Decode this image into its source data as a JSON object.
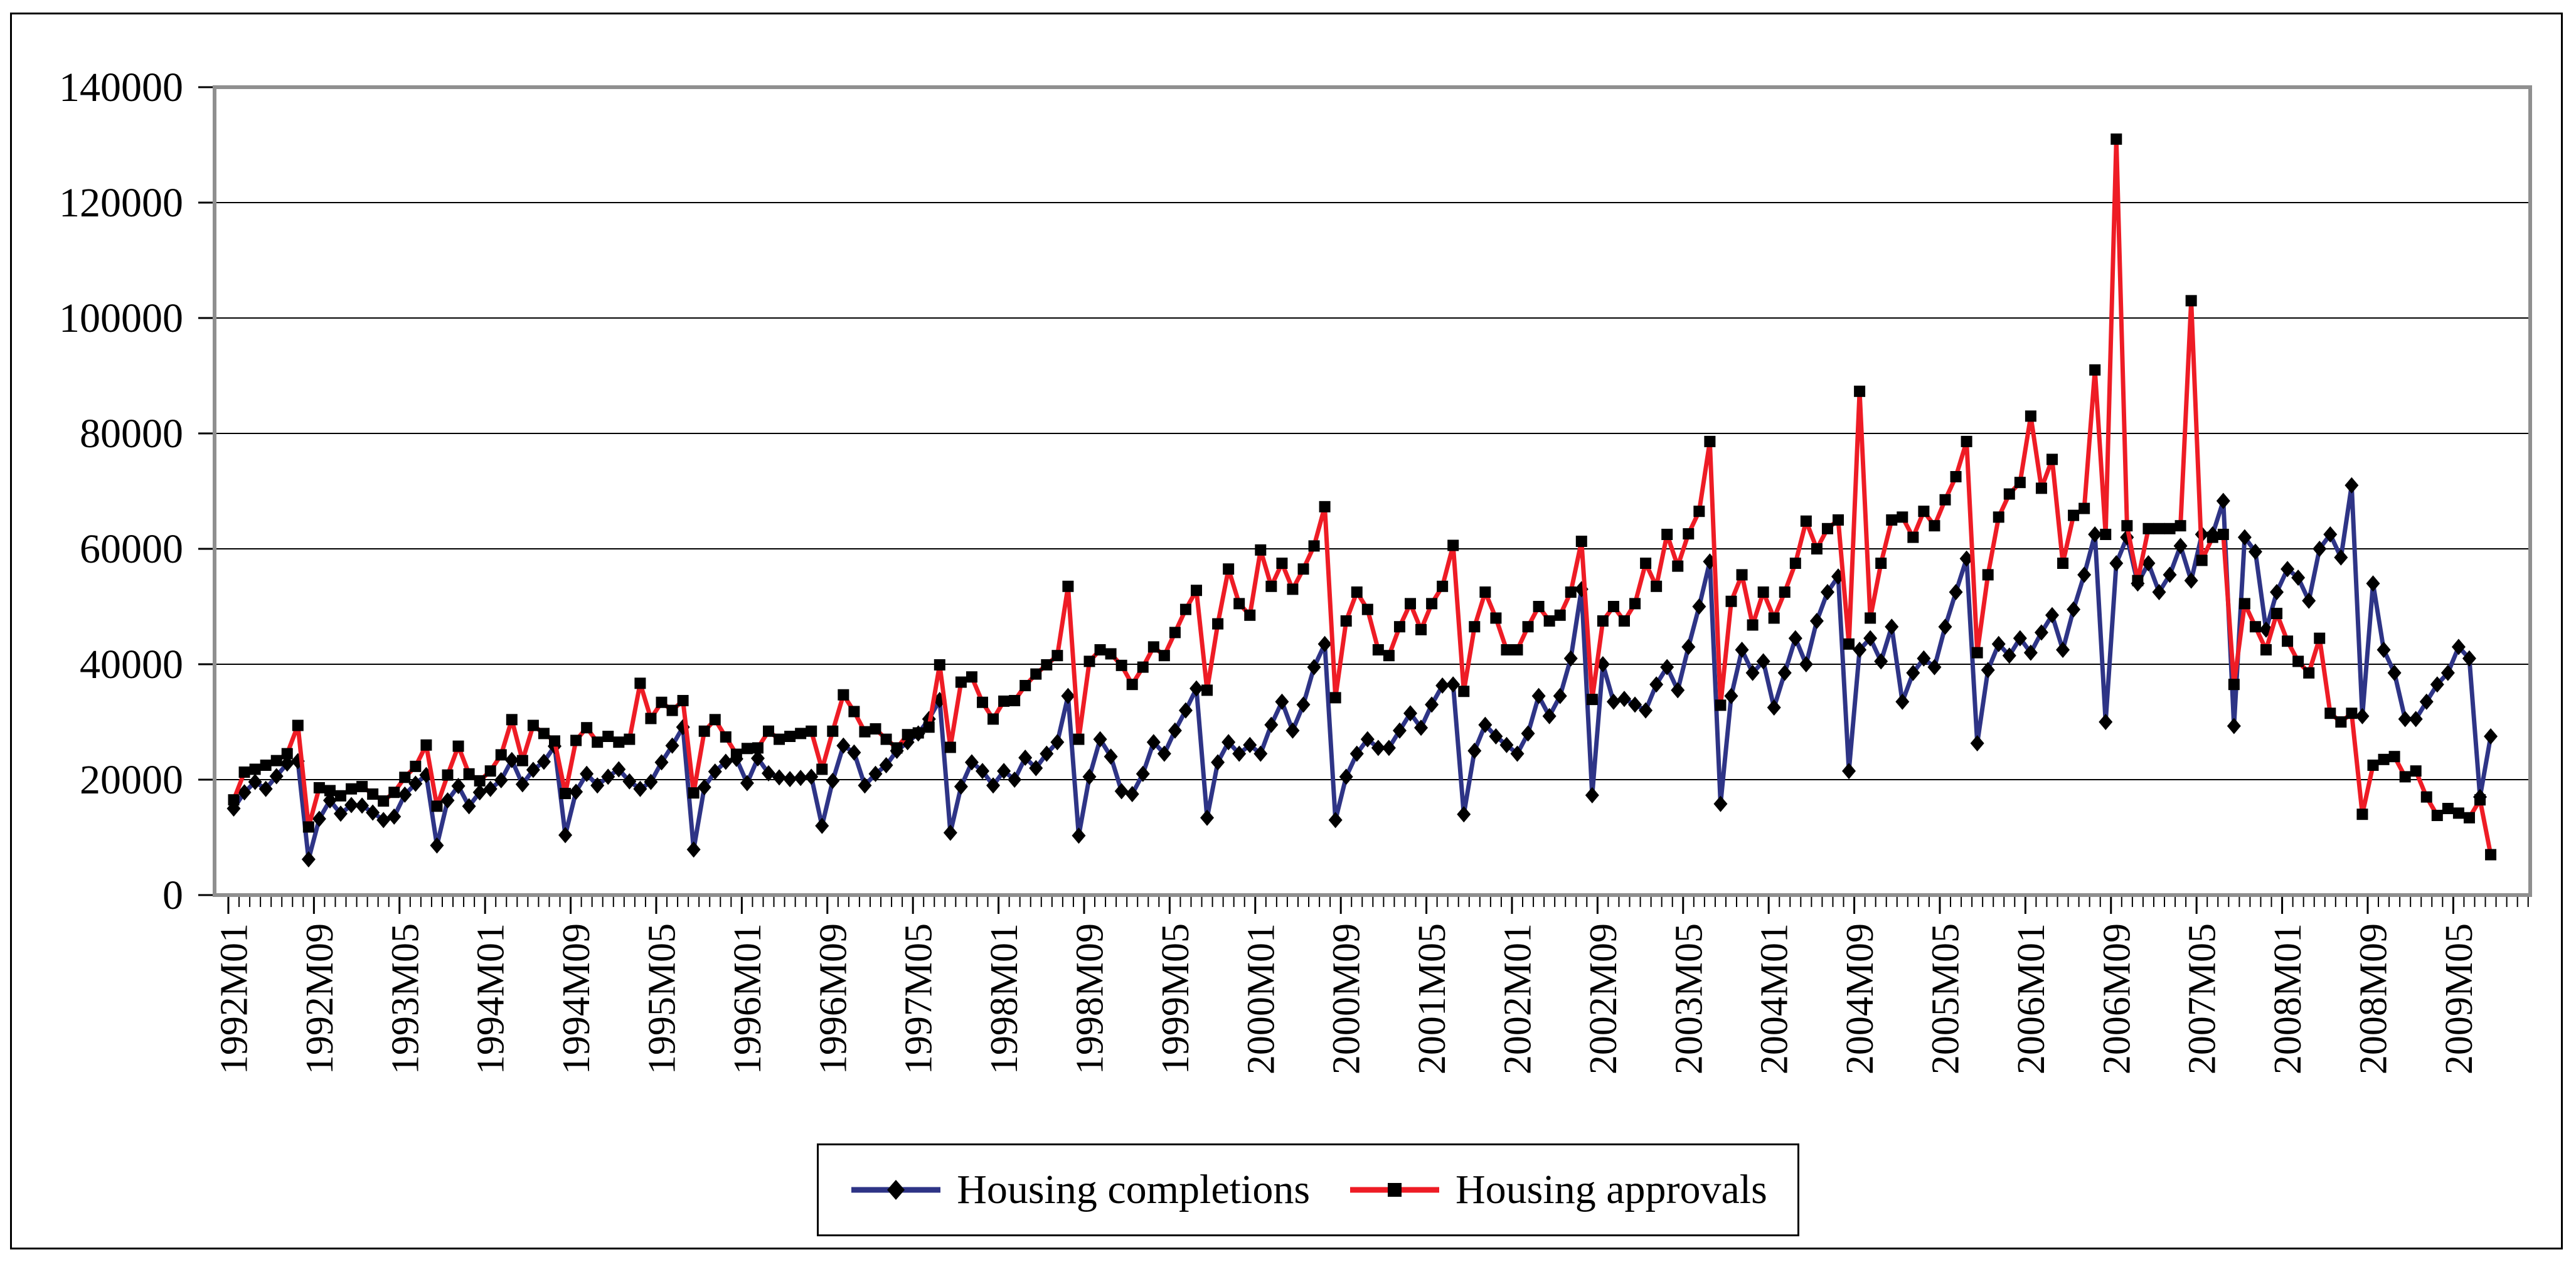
{
  "chart_data": {
    "type": "line",
    "title": "",
    "xlabel": "",
    "ylabel": "",
    "grid": "horizontal",
    "legend_position": "bottom-center",
    "x_axis": {
      "start_month": "1992M01",
      "end_month": "2009M08",
      "months_per_tick_label": 8,
      "tick_labels": [
        "1992M01",
        "1992M09",
        "1993M05",
        "1994M01",
        "1994M09",
        "1995M05",
        "1996M01",
        "1996M09",
        "1997M05",
        "1998M01",
        "1998M09",
        "1999M05",
        "2000M01",
        "2000M09",
        "2001M05",
        "2002M01",
        "2002M09",
        "2003M05",
        "2004M01",
        "2004M09",
        "2005M05",
        "2006M01",
        "2006M09",
        "2007M05",
        "2008M01",
        "2008M09",
        "2009M05"
      ]
    },
    "y_axis": {
      "min": 0,
      "max": 140000,
      "step": 20000,
      "tick_labels": [
        "0",
        "20000",
        "40000",
        "60000",
        "80000",
        "100000",
        "120000",
        "140000"
      ]
    },
    "colors": {
      "completions_line": "#2e3486",
      "approvals_line": "#ee1c25",
      "marker": "#000000",
      "plot_border": "#8f8f8f",
      "gridline": "#000000",
      "outer_border": "#000000"
    },
    "series": [
      {
        "name": "Housing completions",
        "color": "#2e3486",
        "marker": "diamond",
        "marker_color": "#000000",
        "values": [
          15000,
          17800,
          19600,
          18400,
          20600,
          22800,
          23200,
          6200,
          13200,
          16400,
          14100,
          15600,
          15500,
          14300,
          13000,
          13600,
          17400,
          19300,
          20800,
          8600,
          16400,
          18900,
          15400,
          17800,
          18400,
          19900,
          23400,
          19200,
          21700,
          23100,
          25800,
          10400,
          17900,
          21000,
          19000,
          20500,
          21800,
          19700,
          18400,
          19600,
          23000,
          25900,
          29100,
          7900,
          18700,
          21400,
          23100,
          23600,
          19400,
          23700,
          21100,
          20400,
          20100,
          20300,
          20500,
          12000,
          19800,
          25900,
          24700,
          19000,
          21000,
          22500,
          25000,
          26500,
          28000,
          30500,
          33800,
          10800,
          18800,
          23000,
          21500,
          19000,
          21500,
          20000,
          23800,
          22000,
          24500,
          26500,
          34500,
          10300,
          20500,
          27000,
          24000,
          18000,
          17500,
          21000,
          26500,
          24500,
          28500,
          32000,
          35800,
          13400,
          23000,
          26500,
          24500,
          26000,
          24500,
          29500,
          33500,
          28500,
          33000,
          39500,
          43500,
          13000,
          20500,
          24500,
          27000,
          25500,
          25500,
          28500,
          31500,
          29000,
          33000,
          36300,
          36500,
          14000,
          25000,
          29500,
          27500,
          26000,
          24500,
          28000,
          34500,
          31000,
          34500,
          41000,
          53000,
          17300,
          40000,
          33500,
          34000,
          33000,
          32000,
          36500,
          39500,
          35500,
          43000,
          50000,
          57800,
          15800,
          34500,
          42500,
          38500,
          40500,
          32500,
          38500,
          44500,
          40000,
          47500,
          52500,
          55200,
          21500,
          42500,
          44500,
          40500,
          46500,
          33500,
          38500,
          41000,
          39500,
          46500,
          52500,
          58300,
          26300,
          39000,
          43500,
          41500,
          44500,
          42000,
          45500,
          48500,
          42500,
          49500,
          55500,
          62500,
          30000,
          57500,
          62000,
          54000,
          57500,
          52500,
          55500,
          60500,
          54500,
          62500,
          62500,
          68300,
          29300,
          62000,
          59500,
          46000,
          52500,
          56500,
          55000,
          51000,
          60000,
          62500,
          58500,
          71000,
          31000,
          54000,
          42500,
          38500,
          30500,
          30500,
          33500,
          36500,
          38500,
          43000,
          41000,
          17000,
          27500
        ]
      },
      {
        "name": "Housing approvals",
        "color": "#ee1c25",
        "marker": "square",
        "marker_color": "#000000",
        "values": [
          16500,
          21300,
          21800,
          22500,
          23300,
          24500,
          29400,
          11800,
          18600,
          18100,
          17200,
          18400,
          18800,
          17500,
          16300,
          17800,
          20400,
          22300,
          26000,
          15400,
          20800,
          25800,
          21000,
          19800,
          21500,
          24300,
          30400,
          23300,
          29400,
          28000,
          26700,
          17600,
          26800,
          29000,
          26500,
          27500,
          26500,
          27000,
          36700,
          30600,
          33400,
          32000,
          33700,
          17700,
          28400,
          30400,
          27400,
          24400,
          25400,
          25500,
          28400,
          27000,
          27500,
          28000,
          28400,
          21800,
          28400,
          34700,
          31800,
          28300,
          28800,
          27000,
          25500,
          27800,
          28100,
          29100,
          39900,
          25600,
          36900,
          37800,
          33400,
          30500,
          33600,
          33700,
          36300,
          38300,
          39900,
          41500,
          53500,
          27000,
          40500,
          42500,
          41800,
          39800,
          36500,
          39500,
          43000,
          41500,
          45500,
          49500,
          52800,
          35500,
          47000,
          56500,
          50500,
          48500,
          59800,
          53500,
          57500,
          53000,
          56500,
          60500,
          67300,
          34200,
          47500,
          52500,
          49500,
          42500,
          41500,
          46500,
          50500,
          46000,
          50500,
          53500,
          60600,
          35300,
          46500,
          52500,
          48000,
          42500,
          42500,
          46500,
          50000,
          47500,
          48500,
          52500,
          61300,
          33900,
          47500,
          50000,
          47500,
          50500,
          57500,
          53500,
          62500,
          57000,
          62600,
          66500,
          78600,
          32900,
          50900,
          55500,
          46800,
          52500,
          48000,
          52500,
          57500,
          64800,
          60000,
          63500,
          65000,
          43500,
          87300,
          48000,
          57500,
          65000,
          65500,
          62000,
          66500,
          64000,
          68500,
          72500,
          78600,
          42000,
          55500,
          65500,
          69500,
          71500,
          83000,
          70500,
          75500,
          57500,
          65800,
          67000,
          91000,
          62500,
          131000,
          64000,
          54500,
          63500,
          63500,
          63500,
          64000,
          103000,
          58000,
          62000,
          62500,
          36500,
          50500,
          46500,
          42500,
          48800,
          44000,
          40500,
          38500,
          44500,
          31500,
          30000,
          31500,
          14000,
          22500,
          23500,
          24000,
          20500,
          21500,
          17000,
          13800,
          15000,
          14200,
          13400,
          16500,
          7000
        ]
      }
    ]
  }
}
